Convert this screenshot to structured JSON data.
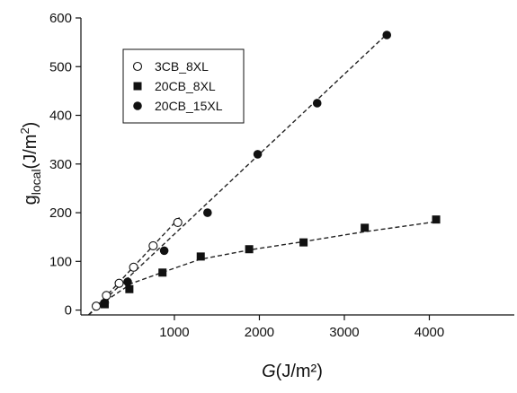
{
  "chart_data": {
    "type": "scatter",
    "xlabel": {
      "italic": "G",
      "rest": "(J/m²)"
    },
    "ylabel": {
      "main": "g",
      "sub": "local",
      "rest": "(J/m",
      "sup": "2",
      "close": ")"
    },
    "xlim": [
      -100,
      5000
    ],
    "ylim": [
      -10,
      600
    ],
    "x_ticks": [
      1000,
      2000,
      3000,
      4000
    ],
    "y_ticks": [
      0,
      100,
      200,
      300,
      400,
      500,
      600
    ],
    "legend_position": "top-left",
    "series": [
      {
        "name": "3CB_8XL",
        "marker": "open-circle",
        "points": [
          [
            80,
            8
          ],
          [
            200,
            30
          ],
          [
            350,
            55
          ],
          [
            520,
            88
          ],
          [
            750,
            132
          ],
          [
            1040,
            180
          ]
        ],
        "fit": [
          [
            -10,
            -10
          ],
          [
            1060,
            190
          ]
        ]
      },
      {
        "name": "20CB_8XL",
        "marker": "filled-square",
        "points": [
          [
            180,
            12
          ],
          [
            470,
            43
          ],
          [
            860,
            77
          ],
          [
            1310,
            110
          ],
          [
            1880,
            125
          ],
          [
            2520,
            139
          ],
          [
            3240,
            169
          ],
          [
            4080,
            186
          ]
        ],
        "fit": [
          [
            -10,
            -10
          ],
          [
            200,
            20
          ],
          [
            500,
            55
          ],
          [
            900,
            80
          ],
          [
            1300,
            104
          ],
          [
            1900,
            124
          ],
          [
            2500,
            140
          ],
          [
            3200,
            160
          ],
          [
            4100,
            182
          ]
        ]
      },
      {
        "name": "20CB_15XL",
        "marker": "filled-circle",
        "points": [
          [
            180,
            15
          ],
          [
            450,
            58
          ],
          [
            880,
            122
          ],
          [
            1390,
            200
          ],
          [
            1980,
            320
          ],
          [
            2680,
            425
          ],
          [
            3500,
            565
          ]
        ],
        "fit": [
          [
            -10,
            -10
          ],
          [
            3520,
            570
          ]
        ]
      }
    ]
  }
}
